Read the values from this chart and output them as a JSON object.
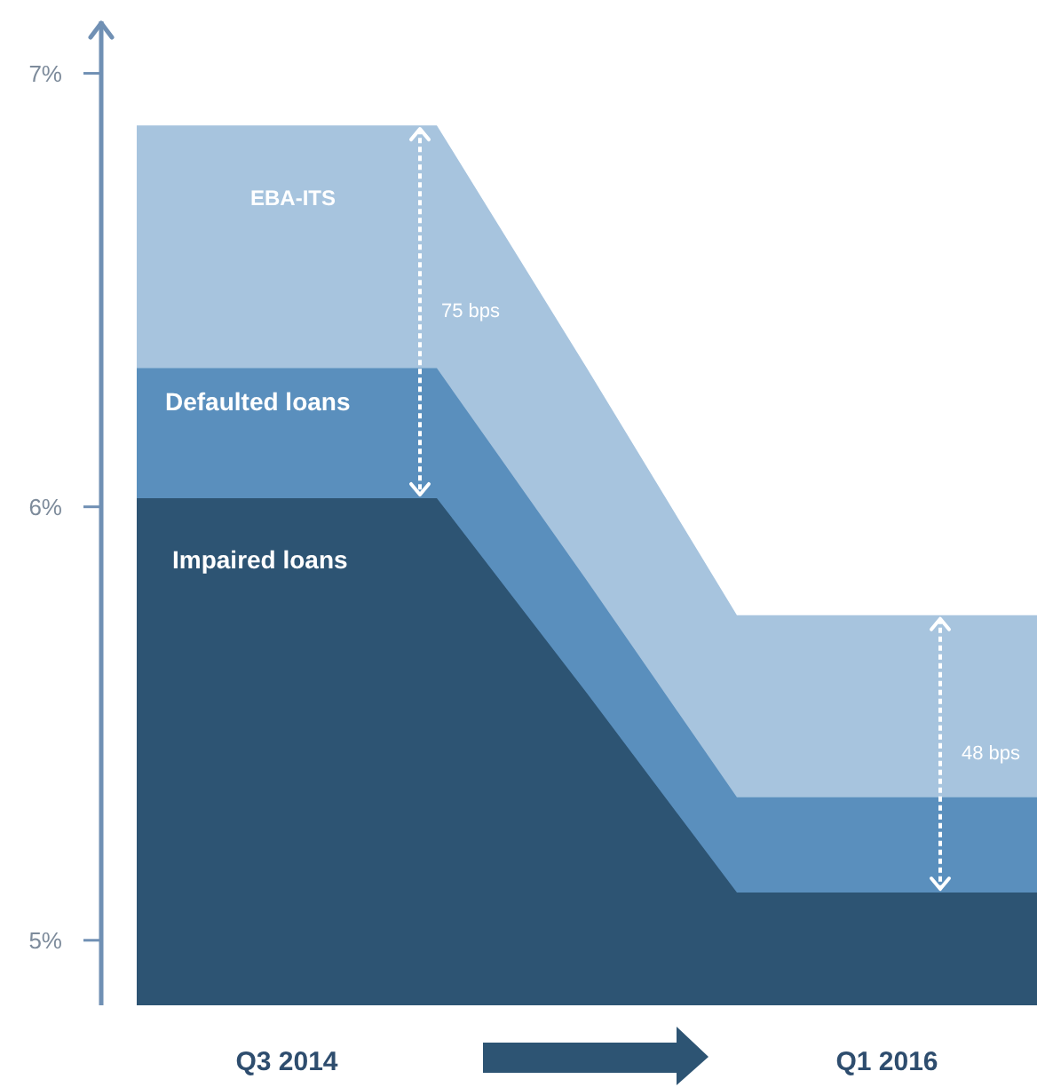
{
  "chart_data": {
    "type": "area",
    "categories": [
      null,
      "Q3 2014",
      null,
      null,
      null,
      "Q1 2016",
      null
    ],
    "series": [
      {
        "name": "EBA-ITS",
        "color": "#a7c4de",
        "values": [
          6.88,
          6.88,
          6.88,
          6.32,
          5.75,
          5.75,
          5.75
        ]
      },
      {
        "name": "Defaulted loans",
        "color": "#5a8fbd",
        "values": [
          6.32,
          6.32,
          6.32,
          5.83,
          5.33,
          5.33,
          5.33
        ]
      },
      {
        "name": "Impaired loans",
        "color": "#2d5473",
        "values": [
          6.02,
          6.02,
          6.02,
          5.57,
          5.11,
          5.11,
          5.11
        ]
      }
    ],
    "ylim": [
      4.85,
      7.12
    ],
    "yticks": [
      {
        "value": 5,
        "label": "5%"
      },
      {
        "value": 6,
        "label": "6%"
      },
      {
        "value": 7,
        "label": "7%"
      }
    ],
    "annotations": [
      "75 bps",
      "48 bps"
    ]
  }
}
